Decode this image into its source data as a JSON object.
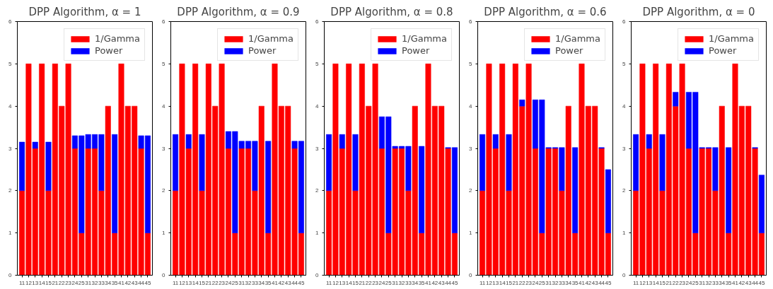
{
  "chart_data": [
    {
      "type": "bar",
      "title": "DPP Algorithm, α = 1",
      "stacked": true,
      "legend": "top right",
      "grid": false,
      "ylim": [
        0,
        6
      ],
      "yticks": [
        0,
        1,
        2,
        3,
        4,
        5,
        6
      ],
      "categories": [
        "11",
        "12",
        "13",
        "14",
        "15",
        "21",
        "22",
        "23",
        "24",
        "25",
        "31",
        "32",
        "33",
        "34",
        "35",
        "41",
        "42",
        "43",
        "44",
        "45"
      ],
      "series": [
        {
          "name": "1/Gamma",
          "color": "#ff0000",
          "values": [
            2,
            5,
            3,
            5,
            2,
            5,
            4,
            5,
            3,
            1,
            3,
            3,
            2,
            4,
            1,
            5,
            4,
            4,
            3,
            1
          ]
        },
        {
          "name": "Power",
          "color": "#0000ff",
          "values": [
            1.15,
            null,
            0.15,
            null,
            1.15,
            null,
            null,
            null,
            0.3,
            2.3,
            0.33,
            0.33,
            1.33,
            null,
            2.33,
            null,
            null,
            null,
            0.3,
            2.3
          ]
        }
      ]
    },
    {
      "type": "bar",
      "title": "DPP Algorithm, α = 0.9",
      "stacked": true,
      "legend": "top right",
      "grid": false,
      "ylim": [
        0,
        6
      ],
      "yticks": [
        0,
        1,
        2,
        3,
        4,
        5,
        6
      ],
      "categories": [
        "11",
        "12",
        "13",
        "14",
        "15",
        "21",
        "22",
        "23",
        "24",
        "25",
        "31",
        "32",
        "33",
        "34",
        "35",
        "41",
        "42",
        "43",
        "44",
        "45"
      ],
      "series": [
        {
          "name": "1/Gamma",
          "color": "#ff0000",
          "values": [
            2,
            5,
            3,
            5,
            2,
            5,
            4,
            5,
            3,
            1,
            3,
            3,
            2,
            4,
            1,
            5,
            4,
            4,
            3,
            1
          ]
        },
        {
          "name": "Power",
          "color": "#0000ff",
          "values": [
            1.33,
            null,
            0.33,
            null,
            1.33,
            null,
            null,
            null,
            0.4,
            2.4,
            0.17,
            0.17,
            1.17,
            null,
            2.17,
            null,
            null,
            null,
            0.17,
            2.17
          ]
        }
      ]
    },
    {
      "type": "bar",
      "title": "DPP Algorithm, α = 0.8",
      "stacked": true,
      "legend": "top right",
      "grid": false,
      "ylim": [
        0,
        6
      ],
      "yticks": [
        0,
        1,
        2,
        3,
        4,
        5,
        6
      ],
      "categories": [
        "11",
        "12",
        "13",
        "14",
        "15",
        "21",
        "22",
        "23",
        "24",
        "25",
        "31",
        "32",
        "33",
        "34",
        "35",
        "41",
        "42",
        "43",
        "44",
        "45"
      ],
      "series": [
        {
          "name": "1/Gamma",
          "color": "#ff0000",
          "values": [
            2,
            5,
            3,
            5,
            2,
            5,
            4,
            5,
            3,
            1,
            3,
            3,
            2,
            4,
            1,
            5,
            4,
            4,
            3,
            1
          ]
        },
        {
          "name": "Power",
          "color": "#0000ff",
          "values": [
            1.33,
            null,
            0.33,
            null,
            1.33,
            null,
            null,
            null,
            0.75,
            2.75,
            0.05,
            0.05,
            1.05,
            null,
            2.05,
            null,
            null,
            null,
            0.02,
            2.02
          ]
        }
      ]
    },
    {
      "type": "bar",
      "title": "DPP Algorithm, α = 0.6",
      "stacked": true,
      "legend": "top right",
      "grid": false,
      "ylim": [
        0,
        6
      ],
      "yticks": [
        0,
        1,
        2,
        3,
        4,
        5,
        6
      ],
      "categories": [
        "11",
        "12",
        "13",
        "14",
        "15",
        "21",
        "22",
        "23",
        "24",
        "25",
        "31",
        "32",
        "33",
        "34",
        "35",
        "41",
        "42",
        "43",
        "44",
        "45"
      ],
      "series": [
        {
          "name": "1/Gamma",
          "color": "#ff0000",
          "values": [
            2,
            5,
            3,
            5,
            2,
            5,
            4,
            5,
            3,
            1,
            3,
            3,
            2,
            4,
            1,
            5,
            4,
            4,
            3,
            1
          ]
        },
        {
          "name": "Power",
          "color": "#0000ff",
          "values": [
            1.33,
            null,
            0.33,
            null,
            1.33,
            null,
            0.15,
            null,
            1.15,
            3.15,
            0.02,
            0.02,
            1.02,
            null,
            2.02,
            null,
            null,
            null,
            0.02,
            1.5
          ]
        }
      ]
    },
    {
      "type": "bar",
      "title": "DPP Algorithm, α = 0",
      "stacked": true,
      "legend": "top right",
      "grid": false,
      "ylim": [
        0,
        6
      ],
      "yticks": [
        0,
        1,
        2,
        3,
        4,
        5,
        6
      ],
      "categories": [
        "11",
        "12",
        "13",
        "14",
        "15",
        "21",
        "22",
        "23",
        "24",
        "25",
        "31",
        "32",
        "33",
        "34",
        "35",
        "41",
        "42",
        "43",
        "44",
        "45"
      ],
      "series": [
        {
          "name": "1/Gamma",
          "color": "#ff0000",
          "values": [
            2,
            5,
            3,
            5,
            2,
            5,
            4,
            5,
            3,
            1,
            3,
            3,
            2,
            4,
            1,
            5,
            4,
            4,
            3,
            1
          ]
        },
        {
          "name": "Power",
          "color": "#0000ff",
          "values": [
            1.33,
            null,
            0.33,
            null,
            1.33,
            null,
            0.33,
            null,
            1.33,
            3.33,
            0.02,
            0.02,
            1.02,
            null,
            2.02,
            null,
            null,
            null,
            0.02,
            1.37
          ]
        }
      ]
    }
  ]
}
